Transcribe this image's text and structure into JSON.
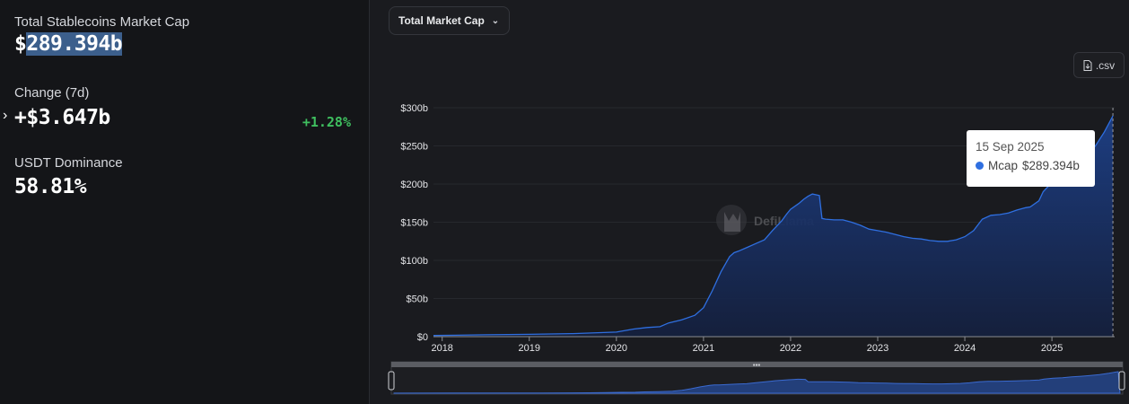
{
  "stats": {
    "mcap_label": "Total Stablecoins Market Cap",
    "mcap_prefix": "$",
    "mcap_value": "289.394b",
    "change_label": "Change (7d)",
    "change_value": "+$3.647b",
    "change_pct": "+1.28%",
    "dominance_label": "USDT Dominance",
    "dominance_value": "58.81%"
  },
  "controls": {
    "metric_dropdown": "Total Market Cap",
    "csv_label": ".csv"
  },
  "watermark": "DefiLlama",
  "tooltip": {
    "date": "15 Sep 2025",
    "series": "Mcap",
    "value": "$289.394b"
  },
  "colors": {
    "line": "#2f6fe0",
    "positive": "#3fbf5f",
    "tooltip_dot": "#2f6fe0"
  },
  "chart_data": {
    "type": "area",
    "title": "",
    "xlabel": "",
    "ylabel": "",
    "ylim": [
      0,
      300
    ],
    "y_ticks": [
      "$0",
      "$50b",
      "$100b",
      "$150b",
      "$200b",
      "$250b",
      "$300b"
    ],
    "y_tick_values": [
      0,
      50,
      100,
      150,
      200,
      250,
      300
    ],
    "x_ticks": [
      "2018",
      "2019",
      "2020",
      "2021",
      "2022",
      "2023",
      "2024",
      "2025"
    ],
    "x_tick_values": [
      2018,
      2019,
      2020,
      2021,
      2022,
      2023,
      2024,
      2025
    ],
    "xlim": [
      2017.9,
      2025.72
    ],
    "grid": true,
    "series": [
      {
        "name": "Mcap",
        "x": [
          2017.9,
          2018.5,
          2019.0,
          2019.5,
          2020.0,
          2020.2,
          2020.35,
          2020.5,
          2020.6,
          2020.75,
          2020.9,
          2021.0,
          2021.1,
          2021.2,
          2021.3,
          2021.35,
          2021.4,
          2021.5,
          2021.6,
          2021.7,
          2021.8,
          2021.9,
          2021.95,
          2022.0,
          2022.1,
          2022.15,
          2022.2,
          2022.25,
          2022.33,
          2022.36,
          2022.4,
          2022.5,
          2022.6,
          2022.7,
          2022.8,
          2022.9,
          2023.0,
          2023.1,
          2023.2,
          2023.3,
          2023.4,
          2023.5,
          2023.6,
          2023.7,
          2023.8,
          2023.9,
          2024.0,
          2024.1,
          2024.2,
          2024.3,
          2024.4,
          2024.5,
          2024.6,
          2024.7,
          2024.75,
          2024.85,
          2024.9,
          2025.0,
          2025.1,
          2025.2,
          2025.3,
          2025.4,
          2025.5,
          2025.6,
          2025.7
        ],
        "values": [
          1.5,
          2.5,
          3,
          4,
          6,
          10,
          12,
          13,
          18,
          22,
          28,
          38,
          60,
          85,
          105,
          110,
          112,
          117,
          122,
          127,
          140,
          152,
          160,
          167,
          175,
          180,
          184,
          187,
          185,
          155,
          154,
          153,
          153,
          150,
          146,
          141,
          139,
          137,
          134,
          131,
          129,
          128,
          126,
          125,
          125,
          127,
          131,
          139,
          154,
          159,
          160,
          162,
          166,
          169,
          170,
          178,
          190,
          202,
          207,
          219,
          227,
          238,
          250,
          268,
          289.394
        ]
      }
    ]
  }
}
